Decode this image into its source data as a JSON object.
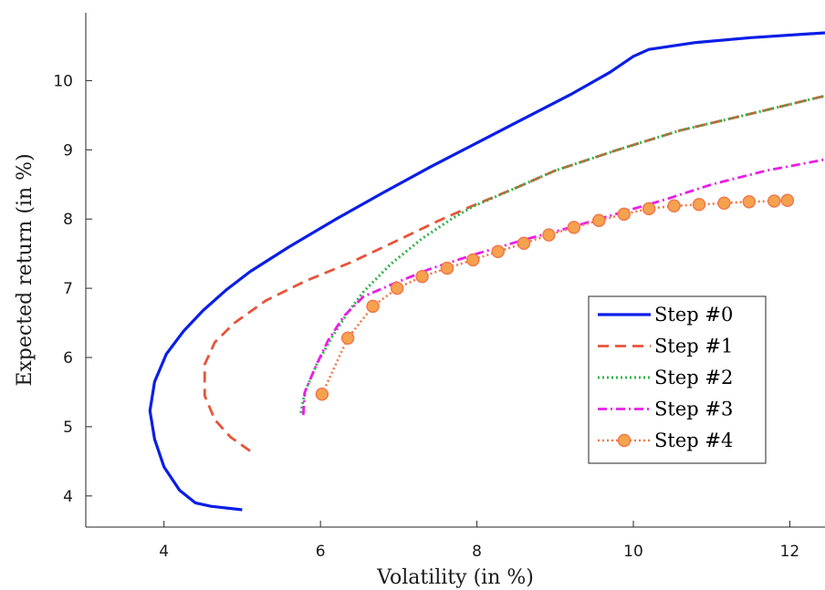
{
  "chart_data": {
    "type": "line",
    "title": "",
    "xlabel": "Volatility (in %)",
    "ylabel": "Expected return (in %)",
    "xlim": [
      3,
      12.45
    ],
    "ylim": [
      3.55,
      10.98
    ],
    "xticks": [
      4,
      6,
      8,
      10,
      12
    ],
    "yticks": [
      4,
      5,
      6,
      7,
      8,
      9,
      10
    ],
    "grid": false,
    "legend_position": "right",
    "series": [
      {
        "name": "Step #0",
        "color": "#0a1ee6",
        "style": "solid",
        "points": [
          [
            5.0,
            3.8
          ],
          [
            4.6,
            3.85
          ],
          [
            4.4,
            3.9
          ],
          [
            4.2,
            4.08
          ],
          [
            4.0,
            4.42
          ],
          [
            3.88,
            4.82
          ],
          [
            3.82,
            5.23
          ],
          [
            3.88,
            5.65
          ],
          [
            4.03,
            6.05
          ],
          [
            4.25,
            6.38
          ],
          [
            4.5,
            6.68
          ],
          [
            4.8,
            6.98
          ],
          [
            5.1,
            7.24
          ],
          [
            5.6,
            7.6
          ],
          [
            6.2,
            8.0
          ],
          [
            6.8,
            8.38
          ],
          [
            7.4,
            8.75
          ],
          [
            8.0,
            9.1
          ],
          [
            8.6,
            9.45
          ],
          [
            9.2,
            9.8
          ],
          [
            9.7,
            10.12
          ],
          [
            10.0,
            10.35
          ],
          [
            10.2,
            10.45
          ],
          [
            10.8,
            10.55
          ],
          [
            11.5,
            10.62
          ],
          [
            12.45,
            10.69
          ]
        ]
      },
      {
        "name": "Step #1",
        "color": "#e8543a",
        "style": "dashed",
        "points": [
          [
            5.1,
            4.65
          ],
          [
            4.85,
            4.85
          ],
          [
            4.65,
            5.1
          ],
          [
            4.52,
            5.45
          ],
          [
            4.52,
            5.9
          ],
          [
            4.65,
            6.22
          ],
          [
            4.9,
            6.5
          ],
          [
            5.3,
            6.82
          ],
          [
            5.8,
            7.1
          ],
          [
            6.4,
            7.38
          ],
          [
            7.0,
            7.7
          ],
          [
            7.5,
            7.97
          ],
          [
            7.9,
            8.17
          ],
          [
            8.5,
            8.45
          ],
          [
            9.0,
            8.7
          ],
          [
            9.8,
            9.0
          ],
          [
            10.6,
            9.28
          ],
          [
            11.5,
            9.52
          ],
          [
            12.45,
            9.78
          ]
        ]
      },
      {
        "name": "Step #2",
        "color": "#2eb34a",
        "style": "dotted",
        "points": [
          [
            5.75,
            5.2
          ],
          [
            5.8,
            5.5
          ],
          [
            5.95,
            5.9
          ],
          [
            6.15,
            6.3
          ],
          [
            6.35,
            6.65
          ],
          [
            6.55,
            6.95
          ],
          [
            6.9,
            7.35
          ],
          [
            7.3,
            7.72
          ],
          [
            7.7,
            8.02
          ],
          [
            7.95,
            8.18
          ],
          [
            8.5,
            8.45
          ],
          [
            9.0,
            8.7
          ],
          [
            9.8,
            9.0
          ],
          [
            10.6,
            9.28
          ],
          [
            11.5,
            9.52
          ],
          [
            12.45,
            9.78
          ]
        ]
      },
      {
        "name": "Step #3",
        "color": "#e81ee8",
        "style": "dashdot",
        "points": [
          [
            5.78,
            5.17
          ],
          [
            5.8,
            5.5
          ],
          [
            5.95,
            5.9
          ],
          [
            6.1,
            6.25
          ],
          [
            6.3,
            6.6
          ],
          [
            6.55,
            6.88
          ],
          [
            6.9,
            7.05
          ],
          [
            7.4,
            7.28
          ],
          [
            8.0,
            7.5
          ],
          [
            8.6,
            7.7
          ],
          [
            9.2,
            7.88
          ],
          [
            9.8,
            8.08
          ],
          [
            10.4,
            8.28
          ],
          [
            11.0,
            8.5
          ],
          [
            11.7,
            8.7
          ],
          [
            12.45,
            8.86
          ]
        ]
      },
      {
        "name": "Step #4",
        "color": "#f2784b",
        "marker_color": "#f5a24f",
        "style": "dotted-marker",
        "points": [
          [
            6.02,
            5.47
          ],
          [
            6.35,
            6.28
          ],
          [
            6.67,
            6.74
          ],
          [
            6.98,
            7.0
          ],
          [
            7.3,
            7.17
          ],
          [
            7.62,
            7.29
          ],
          [
            7.95,
            7.41
          ],
          [
            8.27,
            7.53
          ],
          [
            8.6,
            7.65
          ],
          [
            8.92,
            7.77
          ],
          [
            9.24,
            7.88
          ],
          [
            9.56,
            7.98
          ],
          [
            9.88,
            8.07
          ],
          [
            10.2,
            8.15
          ],
          [
            10.52,
            8.19
          ],
          [
            10.84,
            8.21
          ],
          [
            11.16,
            8.23
          ],
          [
            11.48,
            8.25
          ],
          [
            11.8,
            8.26
          ],
          [
            11.97,
            8.27
          ]
        ]
      }
    ]
  }
}
